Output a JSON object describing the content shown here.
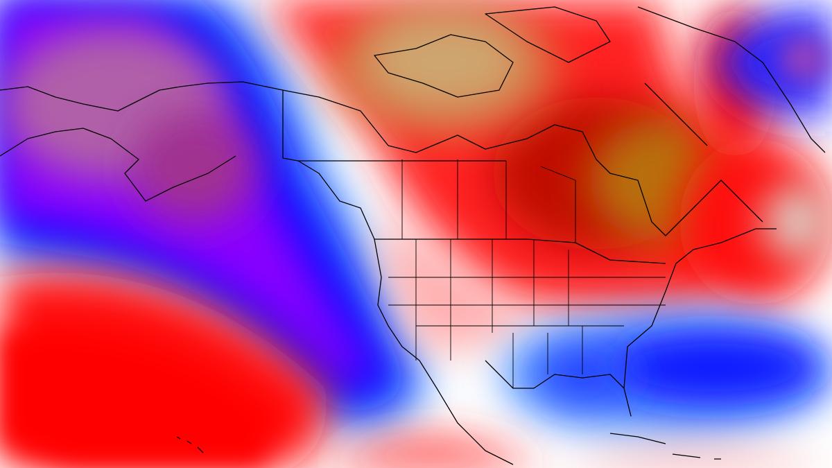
{
  "map": {
    "type": "anomaly-field",
    "palette": {
      "strong_negative": "#8000ff",
      "negative": "#0000ff",
      "weak_negative": "#80c0ff",
      "neutral": "#ffffff",
      "weak_positive": "#ff9090",
      "positive": "#ff0000",
      "strong_positive": "#b00000",
      "very_strong_positive": "#b8860b",
      "extreme_positive": "#e6d8c8",
      "extreme_negative": "#b060b0",
      "coastline": "#000000"
    }
  }
}
